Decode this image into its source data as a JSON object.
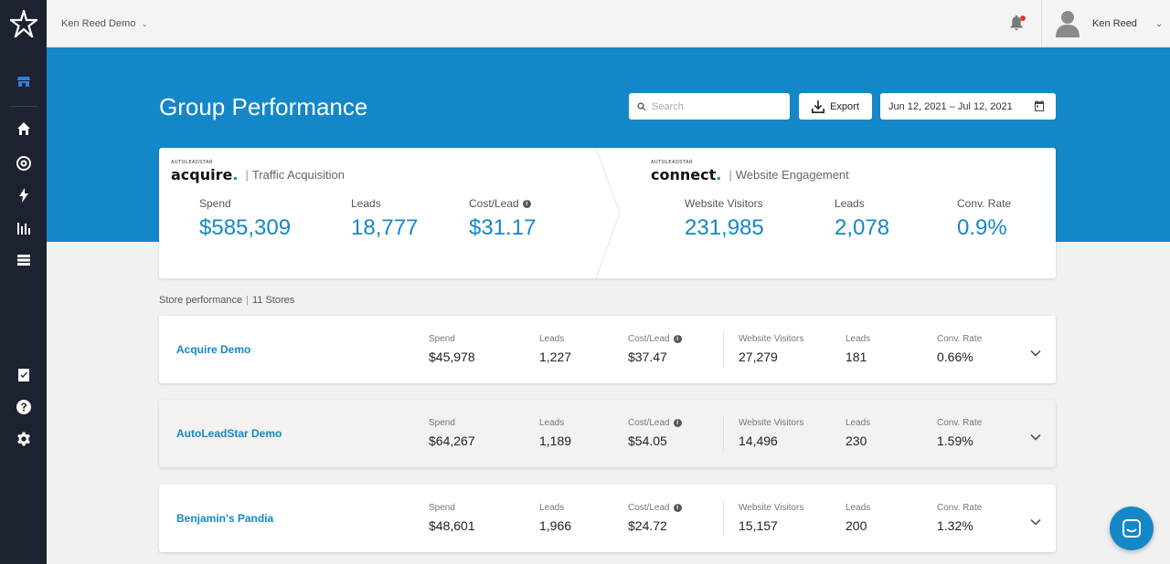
{
  "nav": {
    "logo": "star-logo-icon",
    "items": [
      "storefront-icon",
      "home-icon",
      "target-icon",
      "lightning-icon",
      "bar-chart-icon",
      "list-icon",
      "checklist-icon",
      "help-icon",
      "settings-icon"
    ]
  },
  "topbar": {
    "org_name": "Ken Reed Demo",
    "user_name": "Ken Reed"
  },
  "header": {
    "title": "Group Performance",
    "search_placeholder": "Search",
    "export_label": "Export",
    "date_range": "Jun 12, 2021 – Jul 12, 2021"
  },
  "summary": {
    "acquire": {
      "brand_small": "AUTOLEADSTAR",
      "brand_name": "acquire",
      "brand_dot": ".",
      "subtitle": "Traffic Acquisition",
      "metrics": [
        {
          "label": "Spend",
          "value": "$585,309"
        },
        {
          "label": "Leads",
          "value": "18,777"
        },
        {
          "label": "Cost/Lead",
          "value": "$31.17"
        }
      ]
    },
    "connect": {
      "brand_small": "AUTOLEADSTAR",
      "brand_name": "connect",
      "brand_dot": ".",
      "subtitle": "Website Engagement",
      "metrics": [
        {
          "label": "Website Visitors",
          "value": "231,985"
        },
        {
          "label": "Leads",
          "value": "2,078"
        },
        {
          "label": "Conv. Rate",
          "value": "0.9%"
        }
      ]
    }
  },
  "stores_header": {
    "label": "Store performance",
    "count": "11 Stores"
  },
  "store_labels": [
    "Spend",
    "Leads",
    "Cost/Lead",
    "Website Visitors",
    "Leads",
    "Conv. Rate"
  ],
  "stores": [
    {
      "name": "Acquire Demo",
      "values": [
        "$45,978",
        "1,227",
        "$37.47",
        "27,279",
        "181",
        "0.66%"
      ]
    },
    {
      "name": "AutoLeadStar Demo",
      "values": [
        "$64,267",
        "1,189",
        "$54.05",
        "14,496",
        "230",
        "1.59%"
      ]
    },
    {
      "name": "Benjamin's Pandia",
      "values": [
        "$48,601",
        "1,966",
        "$24.72",
        "15,157",
        "200",
        "1.32%"
      ]
    }
  ],
  "colors": {
    "accent": "#1487c8",
    "sidebar": "#1c2230",
    "notification": "#e53935"
  }
}
